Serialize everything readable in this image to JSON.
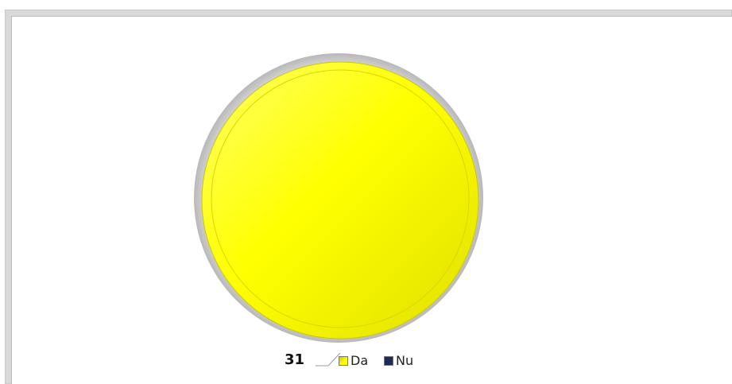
{
  "chart_data": {
    "type": "pie",
    "title": "",
    "categories": [
      "Da",
      "Nu"
    ],
    "values": [
      31,
      0
    ],
    "colors": [
      "#ffff00",
      "#1f2a5c"
    ],
    "data_labels": [
      "31"
    ],
    "legend": {
      "placement": "bottom",
      "entries": [
        "Da",
        "Nu"
      ]
    }
  }
}
